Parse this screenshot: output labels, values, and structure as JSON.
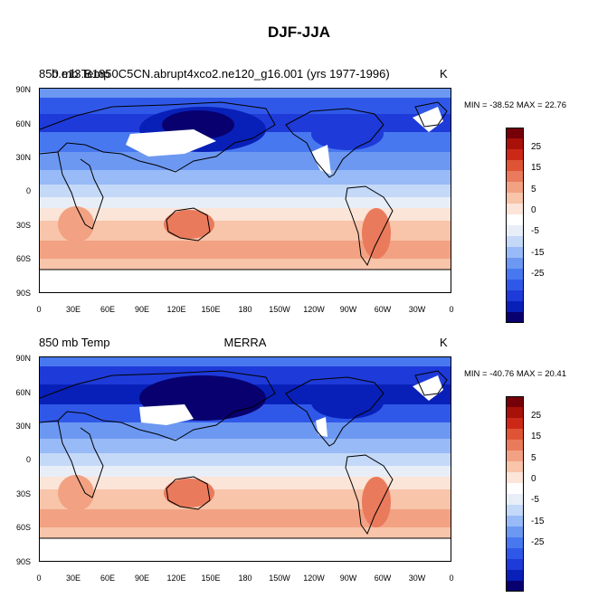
{
  "title": "DJF-JJA",
  "colors": [
    "#08006e",
    "#0820b8",
    "#1e3ad8",
    "#3058e8",
    "#4878f0",
    "#6c98f2",
    "#98baf6",
    "#c4d8f8",
    "#e8eef8",
    "#fbe4d8",
    "#f8c4aa",
    "#f2a282",
    "#ea7a5c",
    "#e05436",
    "#cc2818",
    "#a8100a",
    "#760008"
  ],
  "colorbar_labels": [
    "25",
    "15",
    "5",
    "0",
    "-5",
    "-15",
    "-25"
  ],
  "y_tick_labels": [
    "90N",
    "60N",
    "30N",
    "0",
    "30S",
    "60S",
    "90S"
  ],
  "x_tick_labels": [
    "0",
    "30E",
    "60E",
    "90E",
    "120E",
    "150E",
    "180",
    "150W",
    "120W",
    "90W",
    "60W",
    "30W",
    "0"
  ],
  "panels": [
    {
      "left_title": "850 mb Temp",
      "left_title_overlay": "b.e13.B1850C5CN.abrupt4xco2.ne120_g16.001 (yrs 1977-1996)",
      "center_title": "",
      "units": "K",
      "stats": "MIN = -38.52 MAX =  22.76"
    },
    {
      "left_title": "850 mb Temp",
      "left_title_overlay": "",
      "center_title": "MERRA",
      "units": "K",
      "stats": "MIN = -40.76 MAX =  20.41"
    }
  ]
}
